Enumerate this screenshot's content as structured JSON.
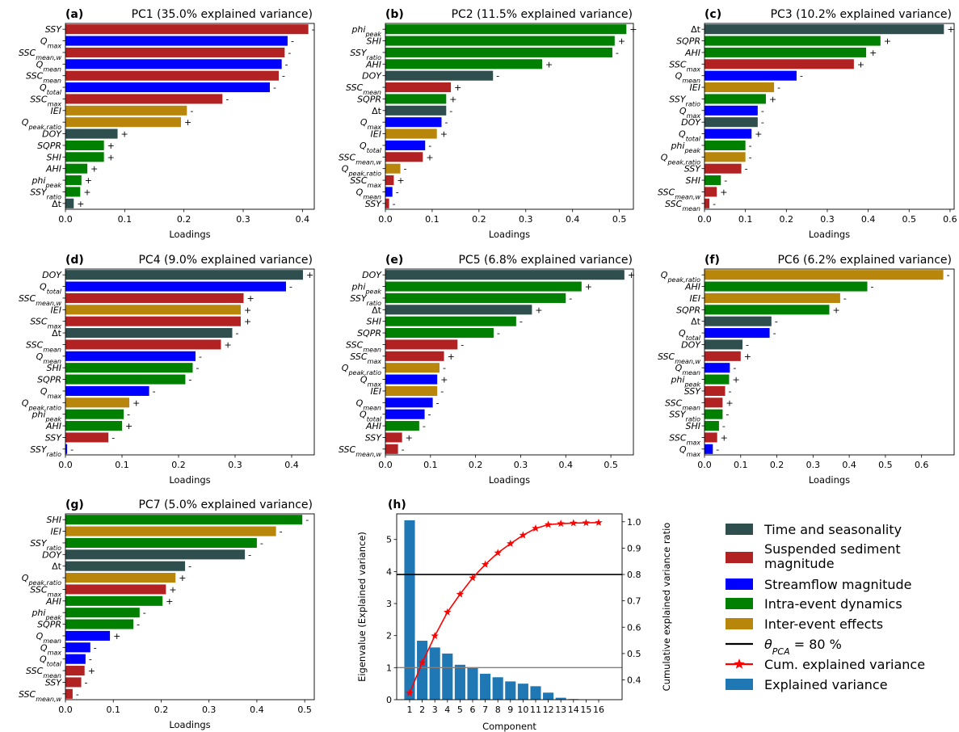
{
  "colors": {
    "time": "#2f4f4f",
    "sediment": "#b22222",
    "streamflow": "#0000ff",
    "intra": "#008000",
    "inter": "#b8860b",
    "bar_h": "#1f77b4",
    "cum_line": "#ff0000",
    "threshold": "#000000",
    "kaiser": "#808080"
  },
  "chart_data": [
    {
      "type": "bar",
      "orientation": "horizontal",
      "letter": "(a)",
      "title": "PC1 (35.0% explained variance)",
      "xlabel": "Loadings",
      "xlim": [
        0,
        0.42
      ],
      "xticks": [
        "0.0",
        "0.1",
        "0.2",
        "0.3",
        "0.4"
      ],
      "bars": [
        {
          "label": "SSY",
          "value": 0.41,
          "group": "sediment",
          "sign": "-"
        },
        {
          "label": "Q_max",
          "value": 0.375,
          "group": "streamflow",
          "sign": "-"
        },
        {
          "label": "SSC_mean,w",
          "value": 0.37,
          "group": "sediment",
          "sign": "-"
        },
        {
          "label": "Q_mean",
          "value": 0.365,
          "group": "streamflow",
          "sign": "-"
        },
        {
          "label": "SSC_mean",
          "value": 0.36,
          "group": "sediment",
          "sign": "-"
        },
        {
          "label": "Q_total",
          "value": 0.345,
          "group": "streamflow",
          "sign": "-"
        },
        {
          "label": "SSC_max",
          "value": 0.265,
          "group": "sediment",
          "sign": "-"
        },
        {
          "label": "IEI",
          "value": 0.205,
          "group": "inter",
          "sign": "-"
        },
        {
          "label": "Q_peak,ratio",
          "value": 0.195,
          "group": "inter",
          "sign": "+"
        },
        {
          "label": "DOY",
          "value": 0.088,
          "group": "time",
          "sign": "+"
        },
        {
          "label": "SQPR",
          "value": 0.065,
          "group": "intra",
          "sign": "+"
        },
        {
          "label": "SHI",
          "value": 0.065,
          "group": "intra",
          "sign": "+"
        },
        {
          "label": "AHI",
          "value": 0.037,
          "group": "intra",
          "sign": "+"
        },
        {
          "label": "phi_peak",
          "value": 0.027,
          "group": "intra",
          "sign": "+"
        },
        {
          "label": "SSY_ratio",
          "value": 0.025,
          "group": "intra",
          "sign": "+"
        },
        {
          "label": "Δt",
          "value": 0.014,
          "group": "time",
          "sign": "+"
        }
      ]
    },
    {
      "type": "bar",
      "orientation": "horizontal",
      "letter": "(b)",
      "title": "PC2 (11.5% explained variance)",
      "xlabel": "Loadings",
      "xlim": [
        0,
        0.53
      ],
      "xticks": [
        "0.0",
        "0.1",
        "0.2",
        "0.3",
        "0.4",
        "0.5"
      ],
      "bars": [
        {
          "label": "phi_peak",
          "value": 0.515,
          "group": "intra",
          "sign": "+"
        },
        {
          "label": "SHI",
          "value": 0.49,
          "group": "intra",
          "sign": "+"
        },
        {
          "label": "SSY_ratio",
          "value": 0.485,
          "group": "intra",
          "sign": "-"
        },
        {
          "label": "AHI",
          "value": 0.335,
          "group": "intra",
          "sign": "+"
        },
        {
          "label": "DOY",
          "value": 0.23,
          "group": "time",
          "sign": "-"
        },
        {
          "label": "SSC_mean",
          "value": 0.14,
          "group": "sediment",
          "sign": "+"
        },
        {
          "label": "SQPR",
          "value": 0.13,
          "group": "intra",
          "sign": "+"
        },
        {
          "label": "Δt",
          "value": 0.13,
          "group": "time",
          "sign": "-"
        },
        {
          "label": "Q_max",
          "value": 0.12,
          "group": "streamflow",
          "sign": "-"
        },
        {
          "label": "IEI",
          "value": 0.11,
          "group": "inter",
          "sign": "+"
        },
        {
          "label": "Q_total",
          "value": 0.085,
          "group": "streamflow",
          "sign": "-"
        },
        {
          "label": "SSC_mean,w",
          "value": 0.08,
          "group": "sediment",
          "sign": "+"
        },
        {
          "label": "Q_peak,ratio",
          "value": 0.032,
          "group": "inter",
          "sign": "-"
        },
        {
          "label": "SSC_max",
          "value": 0.018,
          "group": "sediment",
          "sign": "+"
        },
        {
          "label": "Q_mean",
          "value": 0.015,
          "group": "streamflow",
          "sign": "-"
        },
        {
          "label": "SSY",
          "value": 0.008,
          "group": "sediment",
          "sign": "-"
        }
      ]
    },
    {
      "type": "bar",
      "orientation": "horizontal",
      "letter": "(c)",
      "title": "PC3 (10.2% explained variance)",
      "xlabel": "Loadings",
      "xlim": [
        0,
        0.61
      ],
      "xticks": [
        "0.0",
        "0.1",
        "0.2",
        "0.3",
        "0.4",
        "0.5",
        "0.6"
      ],
      "bars": [
        {
          "label": "Δt",
          "value": 0.585,
          "group": "time",
          "sign": "+"
        },
        {
          "label": "SQPR",
          "value": 0.43,
          "group": "intra",
          "sign": "+"
        },
        {
          "label": "AHI",
          "value": 0.395,
          "group": "intra",
          "sign": "+"
        },
        {
          "label": "SSC_max",
          "value": 0.365,
          "group": "sediment",
          "sign": "+"
        },
        {
          "label": "Q_mean",
          "value": 0.225,
          "group": "streamflow",
          "sign": "-"
        },
        {
          "label": "IEI",
          "value": 0.17,
          "group": "inter",
          "sign": "-"
        },
        {
          "label": "SSY_ratio",
          "value": 0.15,
          "group": "intra",
          "sign": "+"
        },
        {
          "label": "Q_max",
          "value": 0.13,
          "group": "streamflow",
          "sign": "-"
        },
        {
          "label": "DOY",
          "value": 0.13,
          "group": "time",
          "sign": "-"
        },
        {
          "label": "Q_total",
          "value": 0.115,
          "group": "streamflow",
          "sign": "+"
        },
        {
          "label": "phi_peak",
          "value": 0.1,
          "group": "intra",
          "sign": "-"
        },
        {
          "label": "Q_peak,ratio",
          "value": 0.1,
          "group": "inter",
          "sign": "-"
        },
        {
          "label": "SSY",
          "value": 0.09,
          "group": "sediment",
          "sign": "-"
        },
        {
          "label": "SHI",
          "value": 0.04,
          "group": "intra",
          "sign": "-"
        },
        {
          "label": "SSC_mean,w",
          "value": 0.03,
          "group": "sediment",
          "sign": "+"
        },
        {
          "label": "SSC_mean",
          "value": 0.012,
          "group": "sediment",
          "sign": "-"
        }
      ]
    },
    {
      "type": "bar",
      "orientation": "horizontal",
      "letter": "(d)",
      "title": "PC4 (9.0% explained variance)",
      "xlabel": "Loadings",
      "xlim": [
        0,
        0.44
      ],
      "xticks": [
        "0.0",
        "0.1",
        "0.2",
        "0.3",
        "0.4"
      ],
      "bars": [
        {
          "label": "DOY",
          "value": 0.42,
          "group": "time",
          "sign": "+"
        },
        {
          "label": "Q_total",
          "value": 0.39,
          "group": "streamflow",
          "sign": "-"
        },
        {
          "label": "SSC_mean,w",
          "value": 0.315,
          "group": "sediment",
          "sign": "+"
        },
        {
          "label": "IEI",
          "value": 0.31,
          "group": "inter",
          "sign": "+"
        },
        {
          "label": "SSC_max",
          "value": 0.31,
          "group": "sediment",
          "sign": "+"
        },
        {
          "label": "Δt",
          "value": 0.295,
          "group": "time",
          "sign": "-"
        },
        {
          "label": "SSC_mean",
          "value": 0.275,
          "group": "sediment",
          "sign": "+"
        },
        {
          "label": "Q_mean",
          "value": 0.23,
          "group": "streamflow",
          "sign": "-"
        },
        {
          "label": "SHI",
          "value": 0.225,
          "group": "intra",
          "sign": "-"
        },
        {
          "label": "SQPR",
          "value": 0.212,
          "group": "intra",
          "sign": "-"
        },
        {
          "label": "Q_max",
          "value": 0.148,
          "group": "streamflow",
          "sign": "-"
        },
        {
          "label": "Q_peak,ratio",
          "value": 0.113,
          "group": "inter",
          "sign": "+"
        },
        {
          "label": "phi_peak",
          "value": 0.103,
          "group": "intra",
          "sign": "-"
        },
        {
          "label": "AHI",
          "value": 0.1,
          "group": "intra",
          "sign": "+"
        },
        {
          "label": "SSY",
          "value": 0.076,
          "group": "sediment",
          "sign": "-"
        },
        {
          "label": "SSY_ratio",
          "value": 0.003,
          "group": "streamflow",
          "sign": "-"
        }
      ]
    },
    {
      "type": "bar",
      "orientation": "horizontal",
      "letter": "(e)",
      "title": "PC5 (6.8% explained variance)",
      "xlabel": "Loadings",
      "xlim": [
        0,
        0.55
      ],
      "xticks": [
        "0.0",
        "0.1",
        "0.2",
        "0.3",
        "0.4",
        "0.5"
      ],
      "bars": [
        {
          "label": "DOY",
          "value": 0.53,
          "group": "time",
          "sign": "+"
        },
        {
          "label": "phi_peak",
          "value": 0.435,
          "group": "intra",
          "sign": "+"
        },
        {
          "label": "SSY_ratio",
          "value": 0.4,
          "group": "intra",
          "sign": "-"
        },
        {
          "label": "Δt",
          "value": 0.325,
          "group": "time",
          "sign": "+"
        },
        {
          "label": "SHI",
          "value": 0.29,
          "group": "intra",
          "sign": "-"
        },
        {
          "label": "SQPR",
          "value": 0.24,
          "group": "intra",
          "sign": "-"
        },
        {
          "label": "SSC_mean",
          "value": 0.16,
          "group": "sediment",
          "sign": "-"
        },
        {
          "label": "SSC_max",
          "value": 0.13,
          "group": "sediment",
          "sign": "+"
        },
        {
          "label": "Q_peak,ratio",
          "value": 0.12,
          "group": "inter",
          "sign": "-"
        },
        {
          "label": "Q_max",
          "value": 0.115,
          "group": "streamflow",
          "sign": "+"
        },
        {
          "label": "IEI",
          "value": 0.115,
          "group": "inter",
          "sign": "-"
        },
        {
          "label": "Q_mean",
          "value": 0.105,
          "group": "streamflow",
          "sign": "-"
        },
        {
          "label": "Q_total",
          "value": 0.087,
          "group": "streamflow",
          "sign": "-"
        },
        {
          "label": "AHI",
          "value": 0.075,
          "group": "intra",
          "sign": "-"
        },
        {
          "label": "SSY",
          "value": 0.037,
          "group": "sediment",
          "sign": "+"
        },
        {
          "label": "SSC_mean,w",
          "value": 0.028,
          "group": "sediment",
          "sign": "-"
        }
      ]
    },
    {
      "type": "bar",
      "orientation": "horizontal",
      "letter": "(f)",
      "title": "PC6 (6.2% explained variance)",
      "xlabel": "Loadings",
      "xlim": [
        0,
        0.69
      ],
      "xticks": [
        "0.0",
        "0.1",
        "0.2",
        "0.3",
        "0.4",
        "0.5",
        "0.6"
      ],
      "bars": [
        {
          "label": "Q_peak,ratio",
          "value": 0.66,
          "group": "inter",
          "sign": "-"
        },
        {
          "label": "AHI",
          "value": 0.45,
          "group": "intra",
          "sign": "-"
        },
        {
          "label": "IEI",
          "value": 0.375,
          "group": "inter",
          "sign": "-"
        },
        {
          "label": "SQPR",
          "value": 0.345,
          "group": "intra",
          "sign": "+"
        },
        {
          "label": "Δt",
          "value": 0.185,
          "group": "time",
          "sign": "-"
        },
        {
          "label": "Q_total",
          "value": 0.18,
          "group": "streamflow",
          "sign": "-"
        },
        {
          "label": "DOY",
          "value": 0.105,
          "group": "time",
          "sign": "-"
        },
        {
          "label": "SSC_mean,w",
          "value": 0.1,
          "group": "sediment",
          "sign": "+"
        },
        {
          "label": "Q_mean",
          "value": 0.07,
          "group": "streamflow",
          "sign": "-"
        },
        {
          "label": "phi_peak",
          "value": 0.068,
          "group": "intra",
          "sign": "+"
        },
        {
          "label": "SSY",
          "value": 0.057,
          "group": "sediment",
          "sign": "-"
        },
        {
          "label": "SSC_mean",
          "value": 0.05,
          "group": "sediment",
          "sign": "+"
        },
        {
          "label": "SSY_ratio",
          "value": 0.05,
          "group": "intra",
          "sign": "-"
        },
        {
          "label": "SHI",
          "value": 0.04,
          "group": "intra",
          "sign": "-"
        },
        {
          "label": "SSC_max",
          "value": 0.035,
          "group": "sediment",
          "sign": "+"
        },
        {
          "label": "Q_max",
          "value": 0.023,
          "group": "streamflow",
          "sign": "-"
        }
      ]
    },
    {
      "type": "bar",
      "orientation": "horizontal",
      "letter": "(g)",
      "title": "PC7 (5.0% explained variance)",
      "xlabel": "Loadings",
      "xlim": [
        0,
        0.52
      ],
      "xticks": [
        "0.0",
        "0.1",
        "0.2",
        "0.3",
        "0.4",
        "0.5"
      ],
      "bars": [
        {
          "label": "SHI",
          "value": 0.495,
          "group": "intra",
          "sign": "-"
        },
        {
          "label": "IEI",
          "value": 0.44,
          "group": "inter",
          "sign": "-"
        },
        {
          "label": "SSY_ratio",
          "value": 0.4,
          "group": "intra",
          "sign": "-"
        },
        {
          "label": "DOY",
          "value": 0.375,
          "group": "time",
          "sign": "-"
        },
        {
          "label": "Δt",
          "value": 0.25,
          "group": "time",
          "sign": "-"
        },
        {
          "label": "Q_peak,ratio",
          "value": 0.23,
          "group": "inter",
          "sign": "+"
        },
        {
          "label": "SSC_max",
          "value": 0.21,
          "group": "sediment",
          "sign": "+"
        },
        {
          "label": "AHI",
          "value": 0.203,
          "group": "intra",
          "sign": "+"
        },
        {
          "label": "phi_peak",
          "value": 0.155,
          "group": "intra",
          "sign": "-"
        },
        {
          "label": "SQPR",
          "value": 0.142,
          "group": "intra",
          "sign": "-"
        },
        {
          "label": "Q_mean",
          "value": 0.093,
          "group": "streamflow",
          "sign": "+"
        },
        {
          "label": "Q_max",
          "value": 0.052,
          "group": "streamflow",
          "sign": "-"
        },
        {
          "label": "Q_total",
          "value": 0.042,
          "group": "streamflow",
          "sign": "-"
        },
        {
          "label": "SSC_mean",
          "value": 0.04,
          "group": "sediment",
          "sign": "+"
        },
        {
          "label": "SSY",
          "value": 0.033,
          "group": "sediment",
          "sign": "-"
        },
        {
          "label": "SSC_mean,w",
          "value": 0.015,
          "group": "sediment",
          "sign": "-"
        }
      ]
    },
    {
      "type": "bar",
      "letter": "(h)",
      "title": "",
      "xlabel": "Component",
      "ylabel": "Eigenvalue (Explained variance)",
      "y2label": "Cumulative explained variance ratio",
      "categories": [
        "1",
        "2",
        "3",
        "4",
        "5",
        "6",
        "7",
        "8",
        "9",
        "10",
        "11",
        "12",
        "13",
        "14",
        "15",
        "16"
      ],
      "ylim": [
        0,
        5.8
      ],
      "yticks": [
        "0",
        "1",
        "2",
        "3",
        "4",
        "5"
      ],
      "y2lim": [
        0.325,
        1.03
      ],
      "y2ticks": [
        "0.4",
        "0.5",
        "0.6",
        "0.7",
        "0.8",
        "0.9",
        "1.0"
      ],
      "eigenvalues": [
        5.6,
        1.84,
        1.63,
        1.44,
        1.09,
        0.99,
        0.81,
        0.7,
        0.57,
        0.5,
        0.42,
        0.22,
        0.06,
        0.02,
        0.01,
        0.005
      ],
      "cumulative_ratio": [
        0.35,
        0.465,
        0.567,
        0.657,
        0.725,
        0.787,
        0.838,
        0.882,
        0.917,
        0.949,
        0.975,
        0.989,
        0.993,
        0.995,
        0.996,
        0.997
      ],
      "threshold_ratio": 0.8,
      "kaiser_eigenvalue": 1.0
    }
  ],
  "legend": [
    {
      "label": "Time and seasonality",
      "kind": "patch",
      "color_key": "time"
    },
    {
      "label": "Suspended sediment\nmagnitude",
      "kind": "patch",
      "color_key": "sediment"
    },
    {
      "label": "Streamflow magnitude",
      "kind": "patch",
      "color_key": "streamflow"
    },
    {
      "label": "Intra-event dynamics",
      "kind": "patch",
      "color_key": "intra"
    },
    {
      "label": "Inter-event effects",
      "kind": "patch",
      "color_key": "inter"
    },
    {
      "label": "θ_PCA = 80 %",
      "kind": "line",
      "color_key": "threshold"
    },
    {
      "label": "Cum. explained variance",
      "kind": "line-star",
      "color_key": "cum_line"
    },
    {
      "label": "Explained variance",
      "kind": "patch",
      "color_key": "bar_h"
    }
  ]
}
